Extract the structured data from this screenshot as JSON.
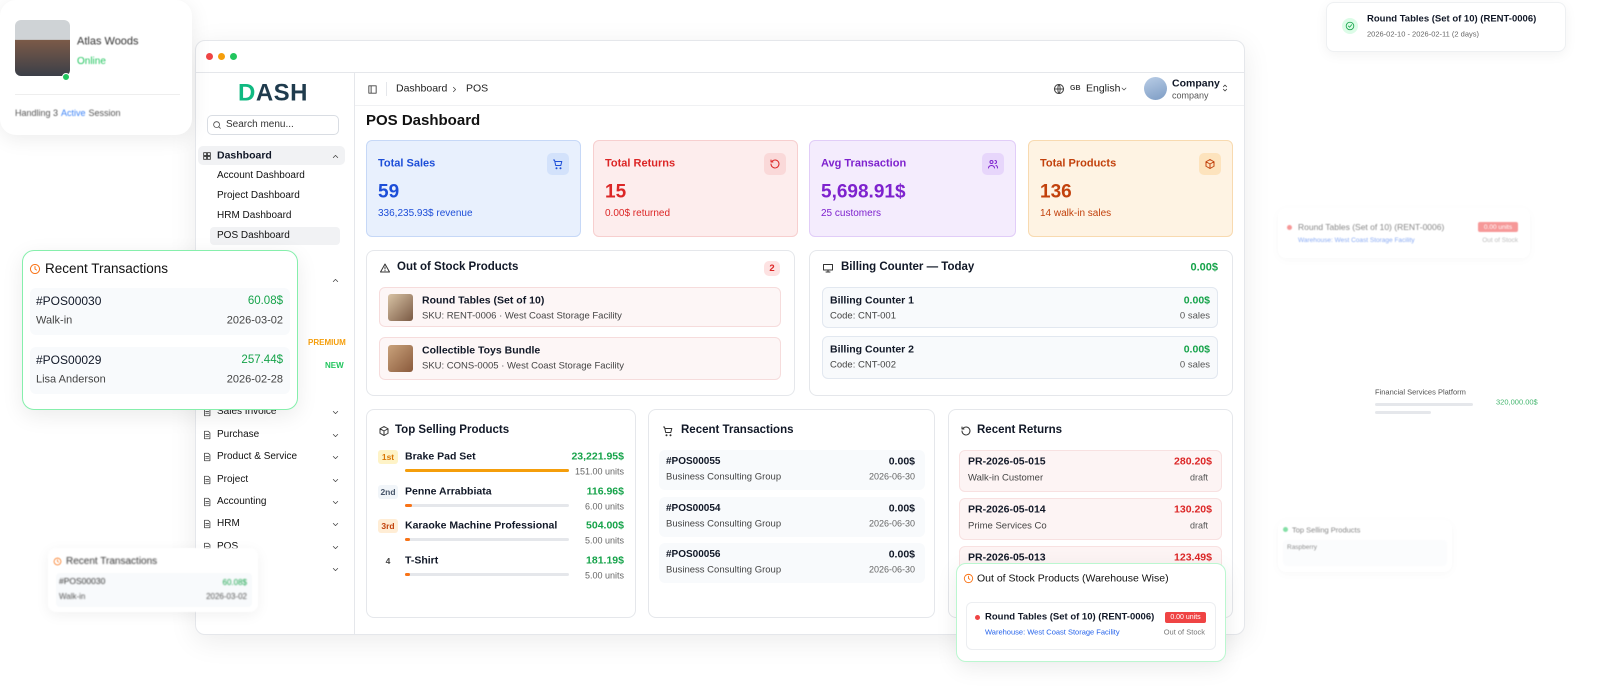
{
  "profile": {
    "name": "Atlas Woods",
    "status": "Online",
    "session_prefix": "Handling 3",
    "session_highlight": "Active",
    "session_suffix": "Session"
  },
  "sidebar": {
    "logo": "DASH",
    "search_placeholder": "Search menu...",
    "dashboard": "Dashboard",
    "submenu": [
      "Account Dashboard",
      "Project Dashboard",
      "HRM Dashboard",
      "POS Dashboard"
    ],
    "badges": [
      "PREMIUM",
      "NEW"
    ],
    "menu": [
      "Sales Invoice",
      "Purchase",
      "Product & Service",
      "Project",
      "Accounting",
      "HRM",
      "POS"
    ]
  },
  "header": {
    "breadcrumb": [
      "Dashboard",
      "POS"
    ],
    "language_code": "GB",
    "language": "English",
    "company_name": "Company",
    "company_role": "company"
  },
  "page_title": "POS Dashboard",
  "stats": [
    {
      "title": "Total Sales",
      "value": "59",
      "sub": "336,235.93$ revenue"
    },
    {
      "title": "Total Returns",
      "value": "15",
      "sub": "0.00$ returned"
    },
    {
      "title": "Avg Transaction",
      "value": "5,698.91$",
      "sub": "25 customers"
    },
    {
      "title": "Total Products",
      "value": "136",
      "sub": "14 walk-in sales"
    }
  ],
  "out_of_stock": {
    "title": "Out of Stock Products",
    "count": "2",
    "items": [
      {
        "name": "Round Tables (Set of 10)",
        "sku": "SKU: RENT-0006 · West Coast Storage Facility"
      },
      {
        "name": "Collectible Toys Bundle",
        "sku": "SKU: CONS-0005 · West Coast Storage Facility"
      }
    ]
  },
  "billing": {
    "title": "Billing Counter — Today",
    "total": "0.00$",
    "counters": [
      {
        "name": "Billing Counter 1",
        "code": "Code: CNT-001",
        "amount": "0.00$",
        "sales": "0 sales"
      },
      {
        "name": "Billing Counter 2",
        "code": "Code: CNT-002",
        "amount": "0.00$",
        "sales": "0 sales"
      }
    ]
  },
  "top_selling": {
    "title": "Top Selling Products",
    "items": [
      {
        "rank": "1st",
        "name": "Brake Pad Set",
        "amount": "23,221.95$",
        "units": 151,
        "units_label": "151.00 units"
      },
      {
        "rank": "2nd",
        "name": "Penne Arrabbiata",
        "amount": "116.96$",
        "units": 6,
        "units_label": "6.00 units"
      },
      {
        "rank": "3rd",
        "name": "Karaoke Machine Professional",
        "amount": "504.00$",
        "units": 5,
        "units_label": "5.00 units"
      },
      {
        "rank": "4",
        "name": "T-Shirt",
        "amount": "181.19$",
        "units": 5,
        "units_label": "5.00 units"
      }
    ]
  },
  "recent_transactions": {
    "title": "Recent Transactions",
    "items": [
      {
        "id": "#POS00055",
        "customer": "Business Consulting Group",
        "amount": "0.00$",
        "date": "2026-06-30"
      },
      {
        "id": "#POS00054",
        "customer": "Business Consulting Group",
        "amount": "0.00$",
        "date": "2026-06-30"
      },
      {
        "id": "#POS00056",
        "customer": "Business Consulting Group",
        "amount": "0.00$",
        "date": "2026-06-30"
      }
    ]
  },
  "recent_returns": {
    "title": "Recent Returns",
    "items": [
      {
        "id": "PR-2026-05-015",
        "customer": "Walk-in Customer",
        "amount": "280.20$",
        "status": "draft"
      },
      {
        "id": "PR-2026-05-014",
        "customer": "Prime Services Co",
        "amount": "130.20$",
        "status": "draft"
      },
      {
        "id": "PR-2026-05-013",
        "amount": "123.49$"
      }
    ]
  },
  "overlay_transactions": {
    "title": "Recent Transactions",
    "items": [
      {
        "id": "#POS00030",
        "amount": "60.08$",
        "customer": "Walk-in",
        "date": "2026-03-02"
      },
      {
        "id": "#POS00029",
        "amount": "257.44$",
        "customer": "Lisa Anderson",
        "date": "2026-02-28"
      }
    ]
  },
  "mini_transactions": {
    "title": "Recent Transactions",
    "id": "#POS00030",
    "amount": "60.08$",
    "customer": "Walk-in",
    "date": "2026-03-02"
  },
  "rental_card": {
    "title": "Round Tables (Set of 10) (RENT-0006)",
    "dates": "2026-02-10 - 2026-02-11 (2 days)"
  },
  "faded_stock_card": {
    "name": "Round Tables (Set of 10) (RENT-0006)",
    "units": "0.00 units",
    "warehouse": "Warehouse: West Coast Storage Facility",
    "status": "Out of Stock"
  },
  "faded_platform": {
    "name": "Financial Services Platform",
    "amount": "320,000.00$"
  },
  "faded_top_selling": {
    "title": "Top Selling Products",
    "item": "Raspberry"
  },
  "warehouse_overlay": {
    "title": "Out of Stock Products (Warehouse Wise)",
    "name": "Round Tables (Set of 10) (RENT-0006)",
    "units": "0.00 units",
    "warehouse": "Warehouse: West Coast Storage Facility",
    "status": "Out of Stock"
  }
}
